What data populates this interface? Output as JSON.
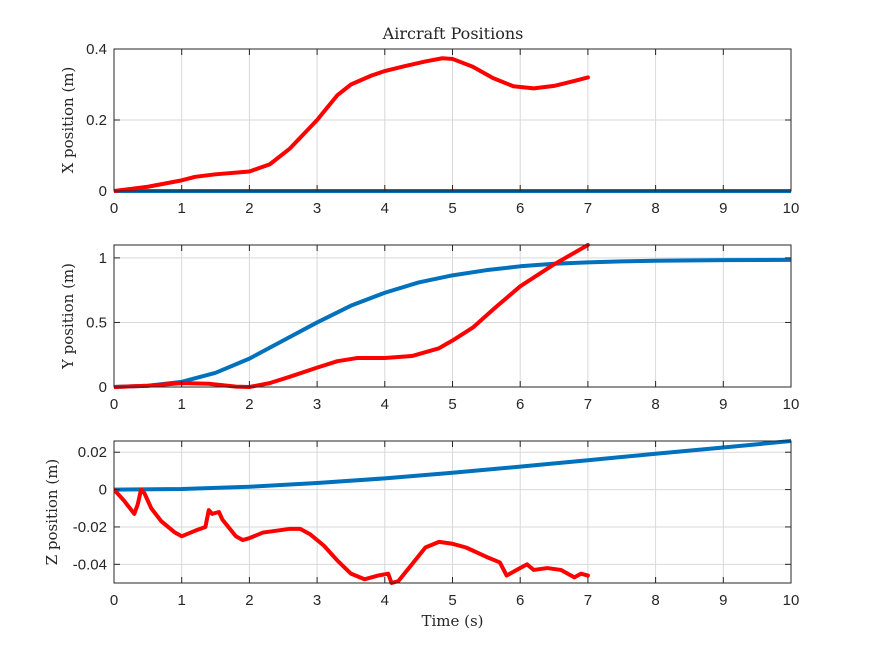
{
  "figure_title": "Aircraft Positions",
  "colors": {
    "blue": "#0072BD",
    "red": "#FF0000"
  },
  "chart_data": [
    {
      "type": "line",
      "xlabel": "",
      "ylabel": "X position (m)",
      "xlim": [
        0,
        10
      ],
      "ylim": [
        0,
        0.4
      ],
      "xticks": [
        0,
        1,
        2,
        3,
        4,
        5,
        6,
        7,
        8,
        9,
        10
      ],
      "yticks": [
        0,
        0.2,
        0.4
      ],
      "ytick_labels": [
        "0",
        "0.2",
        "0.4"
      ],
      "grid": true,
      "series": [
        {
          "color": "#0072BD",
          "x": [
            0,
            10
          ],
          "y": [
            0,
            0
          ]
        },
        {
          "color": "#FF0000",
          "x": [
            0,
            0.5,
            1.0,
            1.2,
            1.5,
            2.0,
            2.3,
            2.6,
            3.0,
            3.3,
            3.5,
            3.8,
            4.0,
            4.3,
            4.6,
            4.85,
            5.0,
            5.3,
            5.6,
            5.9,
            6.2,
            6.5,
            6.8,
            7.0
          ],
          "y": [
            0,
            0.012,
            0.03,
            0.04,
            0.047,
            0.055,
            0.075,
            0.12,
            0.2,
            0.27,
            0.3,
            0.325,
            0.338,
            0.352,
            0.365,
            0.374,
            0.372,
            0.35,
            0.318,
            0.295,
            0.289,
            0.296,
            0.31,
            0.32
          ]
        }
      ]
    },
    {
      "type": "line",
      "xlabel": "",
      "ylabel": "Y position (m)",
      "xlim": [
        0,
        10
      ],
      "ylim": [
        0,
        1.1
      ],
      "xticks": [
        0,
        1,
        2,
        3,
        4,
        5,
        6,
        7,
        8,
        9,
        10
      ],
      "yticks": [
        0,
        0.5,
        1
      ],
      "ytick_labels": [
        "0",
        "0.5",
        "1"
      ],
      "grid": true,
      "series": [
        {
          "color": "#0072BD",
          "x": [
            0,
            0.5,
            1.0,
            1.5,
            2.0,
            2.5,
            3.0,
            3.5,
            4.0,
            4.5,
            5.0,
            5.5,
            6.0,
            6.5,
            7.0,
            7.5,
            8.0,
            9.0,
            10.0
          ],
          "y": [
            0,
            0.01,
            0.04,
            0.11,
            0.22,
            0.36,
            0.5,
            0.63,
            0.73,
            0.81,
            0.865,
            0.905,
            0.935,
            0.955,
            0.965,
            0.973,
            0.978,
            0.983,
            0.985
          ]
        },
        {
          "color": "#FF0000",
          "x": [
            0,
            0.5,
            1.0,
            1.4,
            1.8,
            2.0,
            2.3,
            2.6,
            3.0,
            3.3,
            3.6,
            4.0,
            4.4,
            4.8,
            5.0,
            5.3,
            5.6,
            6.0,
            6.5,
            7.0
          ],
          "y": [
            0,
            0.01,
            0.03,
            0.025,
            0.003,
            0,
            0.03,
            0.08,
            0.15,
            0.2,
            0.225,
            0.225,
            0.24,
            0.3,
            0.36,
            0.46,
            0.6,
            0.78,
            0.95,
            1.1
          ]
        }
      ]
    },
    {
      "type": "line",
      "xlabel": "Time (s)",
      "ylabel": "Z position (m)",
      "xlim": [
        0,
        10
      ],
      "ylim": [
        -0.05,
        0.026
      ],
      "xticks": [
        0,
        1,
        2,
        3,
        4,
        5,
        6,
        7,
        8,
        9,
        10
      ],
      "yticks": [
        -0.04,
        -0.02,
        0,
        0.02
      ],
      "ytick_labels": [
        "-0.04",
        "-0.02",
        "0",
        "0.02"
      ],
      "grid": true,
      "series": [
        {
          "color": "#0072BD",
          "x": [
            0,
            1,
            2,
            3,
            4,
            5,
            6,
            7,
            8,
            9,
            10
          ],
          "y": [
            0,
            0.0003,
            0.0015,
            0.0035,
            0.006,
            0.009,
            0.0123,
            0.0157,
            0.0192,
            0.0225,
            0.026
          ]
        },
        {
          "color": "#FF0000",
          "x": [
            0,
            0.15,
            0.3,
            0.35,
            0.4,
            0.45,
            0.55,
            0.7,
            0.9,
            1.0,
            1.2,
            1.35,
            1.4,
            1.45,
            1.55,
            1.6,
            1.8,
            1.9,
            2.0,
            2.2,
            2.4,
            2.6,
            2.75,
            2.9,
            3.1,
            3.3,
            3.5,
            3.7,
            3.9,
            4.05,
            4.1,
            4.2,
            4.4,
            4.6,
            4.8,
            5.0,
            5.2,
            5.5,
            5.7,
            5.8,
            5.9,
            6.0,
            6.1,
            6.2,
            6.4,
            6.6,
            6.8,
            6.9,
            7.0
          ],
          "y": [
            0,
            -0.006,
            -0.013,
            -0.008,
            0,
            -0.002,
            -0.01,
            -0.017,
            -0.023,
            -0.025,
            -0.022,
            -0.02,
            -0.011,
            -0.013,
            -0.012,
            -0.016,
            -0.025,
            -0.027,
            -0.026,
            -0.023,
            -0.022,
            -0.021,
            -0.021,
            -0.024,
            -0.03,
            -0.038,
            -0.045,
            -0.048,
            -0.046,
            -0.045,
            -0.05,
            -0.049,
            -0.04,
            -0.031,
            -0.028,
            -0.029,
            -0.031,
            -0.036,
            -0.039,
            -0.046,
            -0.044,
            -0.042,
            -0.04,
            -0.043,
            -0.042,
            -0.043,
            -0.047,
            -0.045,
            -0.046
          ]
        }
      ]
    }
  ]
}
